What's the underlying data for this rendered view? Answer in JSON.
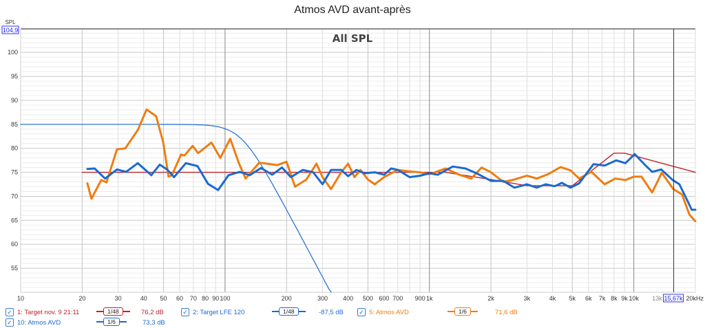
{
  "title": "Atmos AVD avant-après",
  "chart_data": {
    "type": "line",
    "title": "Atmos AVD avant-après",
    "subtitle": "All SPL",
    "ylabel": "SPL",
    "xlabel": "Hz",
    "xscale": "log",
    "xlim": [
      10,
      20000
    ],
    "ylim": [
      50,
      104.9
    ],
    "y_cursor_value": "104,9",
    "x_cursor_value": "15,67k",
    "x_cursor_hz": 15670,
    "yticks": [
      55,
      60,
      65,
      70,
      75,
      80,
      85,
      90,
      95,
      100
    ],
    "xticks": [
      {
        "v": 10,
        "l": "10"
      },
      {
        "v": 20,
        "l": "20"
      },
      {
        "v": 30,
        "l": "30"
      },
      {
        "v": 40,
        "l": "40"
      },
      {
        "v": 50,
        "l": "50"
      },
      {
        "v": 60,
        "l": "60"
      },
      {
        "v": 70,
        "l": "70"
      },
      {
        "v": 80,
        "l": "80"
      },
      {
        "v": 90,
        "l": "90"
      },
      {
        "v": 100,
        "l": "100"
      },
      {
        "v": 200,
        "l": "200"
      },
      {
        "v": 300,
        "l": "300"
      },
      {
        "v": 400,
        "l": "400"
      },
      {
        "v": 500,
        "l": "500"
      },
      {
        "v": 600,
        "l": "600"
      },
      {
        "v": 700,
        "l": "700"
      },
      {
        "v": 900,
        "l": "900"
      },
      {
        "v": 1000,
        "l": "1k"
      },
      {
        "v": 2000,
        "l": "2k"
      },
      {
        "v": 3000,
        "l": "3k"
      },
      {
        "v": 4000,
        "l": "4k"
      },
      {
        "v": 5000,
        "l": "5k"
      },
      {
        "v": 6000,
        "l": "6k"
      },
      {
        "v": 7000,
        "l": "7k"
      },
      {
        "v": 8000,
        "l": "8k"
      },
      {
        "v": 9000,
        "l": "9k"
      },
      {
        "v": 10000,
        "l": "10k"
      },
      {
        "v": 13000,
        "l": "13k"
      },
      {
        "v": 20000,
        "l": "20kHz"
      }
    ],
    "grid": true,
    "series": [
      {
        "name": "1: Target nov. 9 21:11",
        "color": "#c0202a",
        "width": 1.4,
        "smoothing": "1/48",
        "level": "76,2 dB",
        "points": [
          [
            20,
            75
          ],
          [
            1200,
            75
          ],
          [
            2000,
            73.5
          ],
          [
            3000,
            72.2
          ],
          [
            5000,
            72.2
          ],
          [
            8000,
            79
          ],
          [
            9000,
            79
          ],
          [
            20000,
            75
          ]
        ]
      },
      {
        "name": "2: Target LFE 120",
        "color": "#1a6ad0",
        "width": 1.2,
        "smoothing": "1/48",
        "level": "-87,5 dB",
        "lowpass": {
          "level": 85,
          "fc": 120,
          "order": 4
        }
      },
      {
        "name": "5: Atmos AVD",
        "color": "#ee7d10",
        "width": 3,
        "smoothing": "1/6",
        "level": "71,6 dB",
        "points": [
          [
            21.2,
            72.7
          ],
          [
            22.2,
            69.5
          ],
          [
            24.8,
            73.4
          ],
          [
            26.3,
            72.9
          ],
          [
            29.6,
            79.8
          ],
          [
            32.5,
            80
          ],
          [
            37.4,
            83.8
          ],
          [
            41.3,
            88.1
          ],
          [
            46,
            86.7
          ],
          [
            49.8,
            81.3
          ],
          [
            52.9,
            74.1
          ],
          [
            55,
            74.4
          ],
          [
            60.9,
            78.7
          ],
          [
            63.3,
            78.5
          ],
          [
            69.4,
            80.5
          ],
          [
            73.8,
            79
          ],
          [
            85.8,
            81.2
          ],
          [
            94.8,
            78
          ],
          [
            106,
            82
          ],
          [
            116.6,
            77
          ],
          [
            126,
            73.7
          ],
          [
            147,
            77
          ],
          [
            160,
            76.8
          ],
          [
            180,
            76.5
          ],
          [
            200,
            77.2
          ],
          [
            220,
            72
          ],
          [
            250,
            73.5
          ],
          [
            280,
            76.8
          ],
          [
            300,
            74
          ],
          [
            330,
            71.5
          ],
          [
            370,
            75
          ],
          [
            400,
            76.8
          ],
          [
            430,
            74
          ],
          [
            460,
            75.5
          ],
          [
            500,
            73.5
          ],
          [
            540,
            72.5
          ],
          [
            600,
            74
          ],
          [
            700,
            75.5
          ],
          [
            800,
            75.2
          ],
          [
            900,
            75
          ],
          [
            1000,
            74.6
          ],
          [
            1200,
            75.8
          ],
          [
            1400,
            74.5
          ],
          [
            1600,
            73.7
          ],
          [
            1800,
            76
          ],
          [
            2000,
            75
          ],
          [
            2300,
            73
          ],
          [
            2600,
            73.5
          ],
          [
            3000,
            74.3
          ],
          [
            3350,
            73.7
          ],
          [
            3800,
            74.6
          ],
          [
            4380,
            76.1
          ],
          [
            4900,
            75.4
          ],
          [
            5400,
            73.7
          ],
          [
            6200,
            75.1
          ],
          [
            7200,
            72.5
          ],
          [
            8100,
            73.7
          ],
          [
            9100,
            73.4
          ],
          [
            10000,
            74.1
          ],
          [
            10900,
            74.1
          ],
          [
            12300,
            70.8
          ],
          [
            13700,
            74.9
          ],
          [
            15600,
            71.5
          ],
          [
            17200,
            70.4
          ],
          [
            18700,
            66.2
          ],
          [
            20000,
            64.8
          ]
        ]
      },
      {
        "name": "10: Atmos AVD",
        "color": "#1a6ad0",
        "width": 3,
        "smoothing": "1/6",
        "level": "73,3 dB",
        "points": [
          [
            21.2,
            75.7
          ],
          [
            23,
            75.8
          ],
          [
            25.9,
            73.7
          ],
          [
            29.6,
            75.6
          ],
          [
            32.8,
            75.1
          ],
          [
            37.4,
            76.9
          ],
          [
            43.6,
            74.4
          ],
          [
            47.9,
            76.6
          ],
          [
            52,
            75.6
          ],
          [
            56.3,
            74
          ],
          [
            64.3,
            76.9
          ],
          [
            73.3,
            76.3
          ],
          [
            82.5,
            72.6
          ],
          [
            92.5,
            71.3
          ],
          [
            104,
            74.4
          ],
          [
            118,
            75.1
          ],
          [
            132,
            74.4
          ],
          [
            150,
            75.9
          ],
          [
            170,
            74.5
          ],
          [
            190,
            76
          ],
          [
            210,
            74
          ],
          [
            240,
            75.5
          ],
          [
            270,
            75
          ],
          [
            300,
            72.5
          ],
          [
            330,
            75.5
          ],
          [
            370,
            75.5
          ],
          [
            400,
            74.2
          ],
          [
            440,
            75.5
          ],
          [
            480,
            74.8
          ],
          [
            540,
            75
          ],
          [
            600,
            74.5
          ],
          [
            650,
            75.8
          ],
          [
            700,
            75.5
          ],
          [
            800,
            74
          ],
          [
            900,
            74.3
          ],
          [
            1000,
            74.8
          ],
          [
            1100,
            74.5
          ],
          [
            1300,
            76.2
          ],
          [
            1500,
            75.8
          ],
          [
            1700,
            74.8
          ],
          [
            2000,
            73.2
          ],
          [
            2300,
            73.2
          ],
          [
            2600,
            71.8
          ],
          [
            3000,
            72.5
          ],
          [
            3350,
            71.8
          ],
          [
            3700,
            72.5
          ],
          [
            4100,
            72.1
          ],
          [
            4450,
            72.8
          ],
          [
            4900,
            71.8
          ],
          [
            5400,
            72.7
          ],
          [
            6350,
            76.7
          ],
          [
            7200,
            76.4
          ],
          [
            8200,
            77.5
          ],
          [
            9100,
            76.9
          ],
          [
            10100,
            78.8
          ],
          [
            11300,
            76.6
          ],
          [
            12300,
            75.1
          ],
          [
            13600,
            75.6
          ],
          [
            15500,
            73.4
          ],
          [
            16700,
            72.5
          ],
          [
            18000,
            69.7
          ],
          [
            19200,
            67.2
          ],
          [
            20000,
            67.2
          ]
        ]
      }
    ]
  }
}
